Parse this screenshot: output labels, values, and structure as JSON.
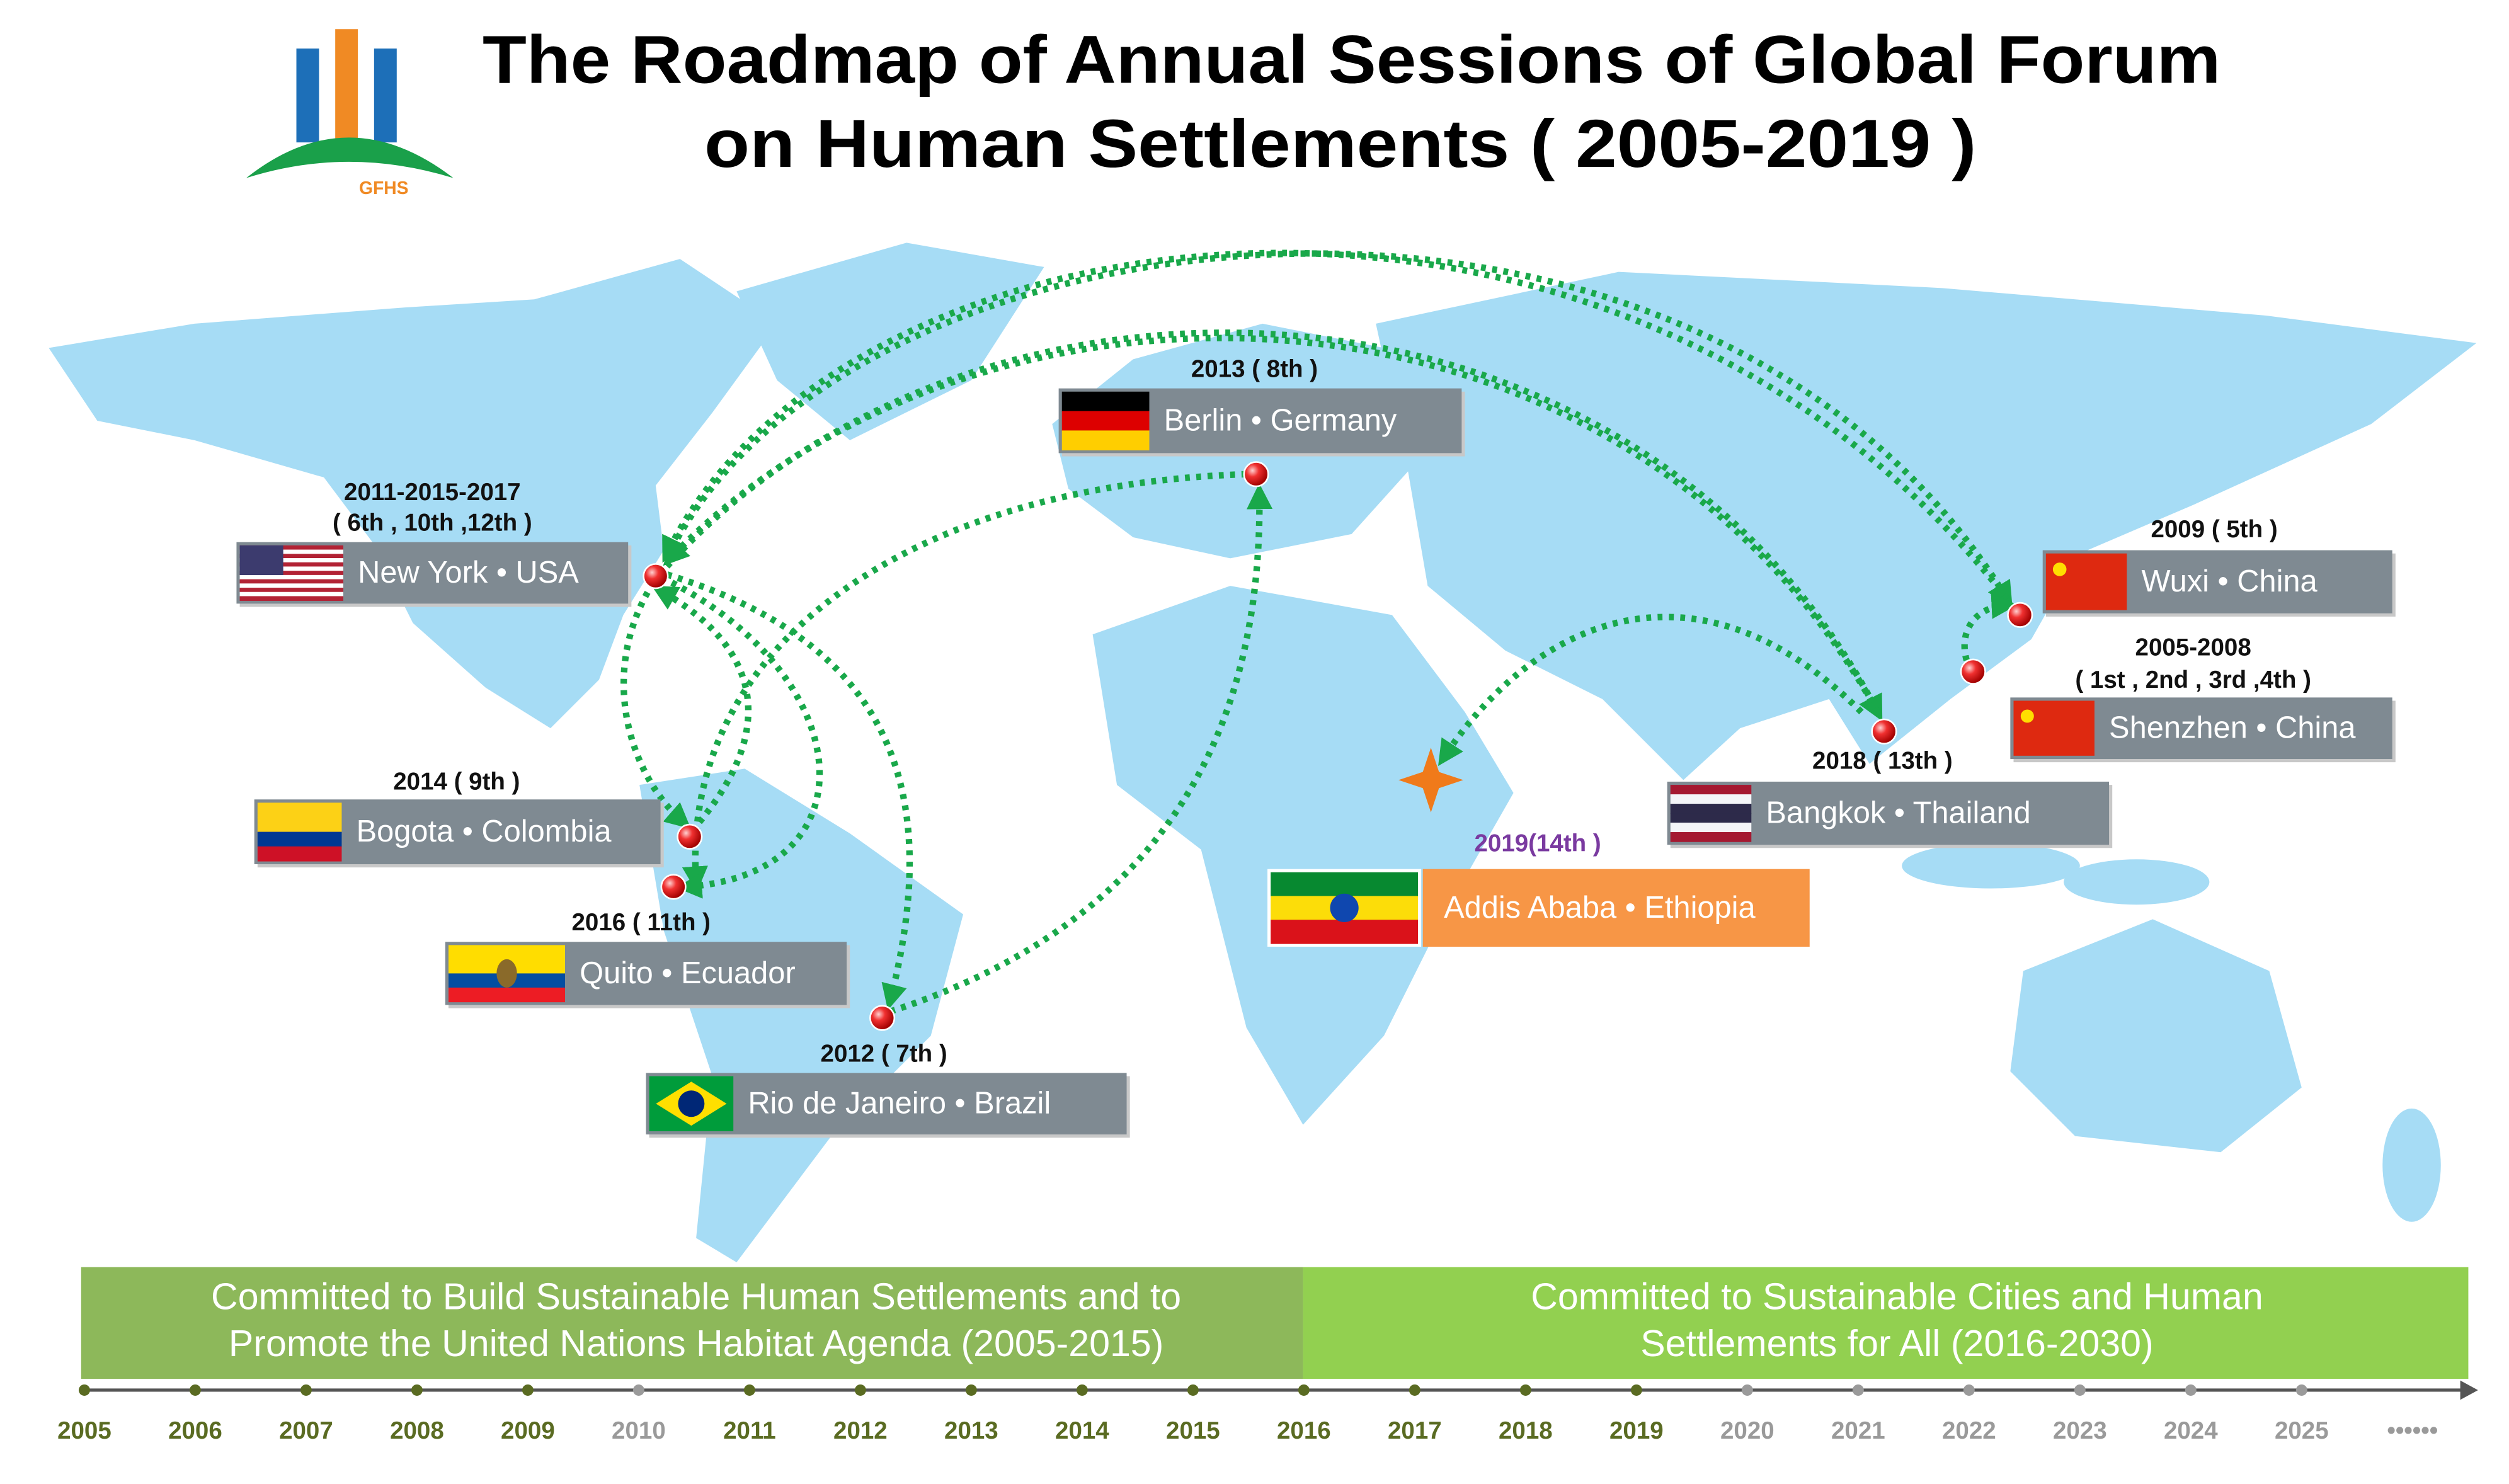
{
  "header": {
    "title_lines": [
      "The Roadmap of  Annual Sessions of Global Forum",
      "on Human Settlements ( 2005-2019 )"
    ],
    "logo_text": "GFHS"
  },
  "sessions": [
    {
      "heading": [
        "2011-2015-2017",
        "( 6th , 10th ,12th )"
      ],
      "place": "New York • USA"
    },
    {
      "heading": [
        "2013 ( 8th )"
      ],
      "place": "Berlin • Germany"
    },
    {
      "heading": [
        "2009 ( 5th )"
      ],
      "place": "Wuxi • China"
    },
    {
      "heading": [
        "2005-2008",
        "( 1st , 2nd , 3rd ,4th )"
      ],
      "place": "Shenzhen • China"
    },
    {
      "heading": [
        "2018 ( 13th )"
      ],
      "place": "Bangkok • Thailand"
    },
    {
      "heading": [
        "2014 ( 9th )"
      ],
      "place": "Bogota • Colombia"
    },
    {
      "heading": [
        "2016 ( 11th )"
      ],
      "place": "Quito • Ecuador"
    },
    {
      "heading": [
        "2012 ( 7th )"
      ],
      "place": "Rio de Janeiro •  Brazil"
    },
    {
      "heading": [
        "2019(14th )"
      ],
      "place": "Addis Ababa • Ethiopia"
    }
  ],
  "banners": [
    {
      "lines": [
        "Committed to Build Sustainable Human Settlements and to",
        "Promote the United Nations Habitat Agenda (2005-2015)"
      ]
    },
    {
      "lines": [
        "Committed to Sustainable Cities and Human",
        "Settlements for All (2016-2030)"
      ]
    }
  ],
  "timeline": {
    "years": [
      "2005",
      "2006",
      "2007",
      "2008",
      "2009",
      "2010",
      "2011",
      "2012",
      "2013",
      "2014",
      "2015",
      "2016",
      "2017",
      "2018",
      "2019",
      "2020",
      "2021",
      "2022",
      "2023",
      "2024",
      "2025",
      "••••••"
    ]
  }
}
